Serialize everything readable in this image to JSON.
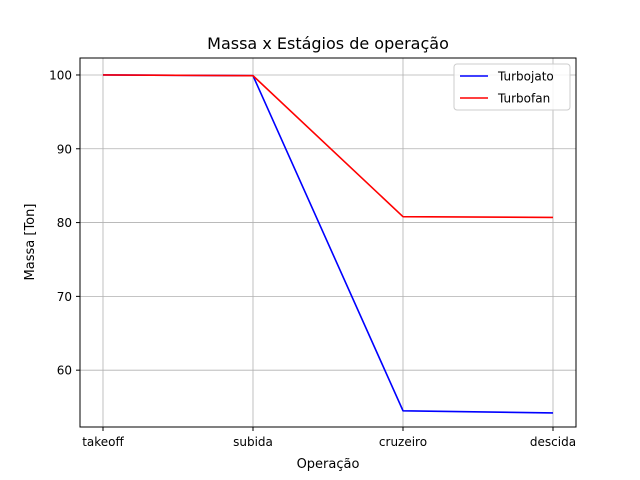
{
  "chart_data": {
    "type": "line",
    "title": "Massa x Estágios de operação",
    "xlabel": "Operação",
    "ylabel": "Massa [Ton]",
    "categories": [
      "takeoff",
      "subida",
      "cruzeiro",
      "descida"
    ],
    "ylim": [
      52.3,
      102.3
    ],
    "yticks": [
      60,
      70,
      80,
      90,
      100
    ],
    "grid": true,
    "legend_position": "top-right",
    "series": [
      {
        "name": "Turbojato",
        "color": "#0000ff",
        "values": [
          100.0,
          99.9,
          54.5,
          54.2
        ]
      },
      {
        "name": "Turbofan",
        "color": "#ff0000",
        "values": [
          100.0,
          99.9,
          80.8,
          80.7
        ]
      }
    ]
  }
}
